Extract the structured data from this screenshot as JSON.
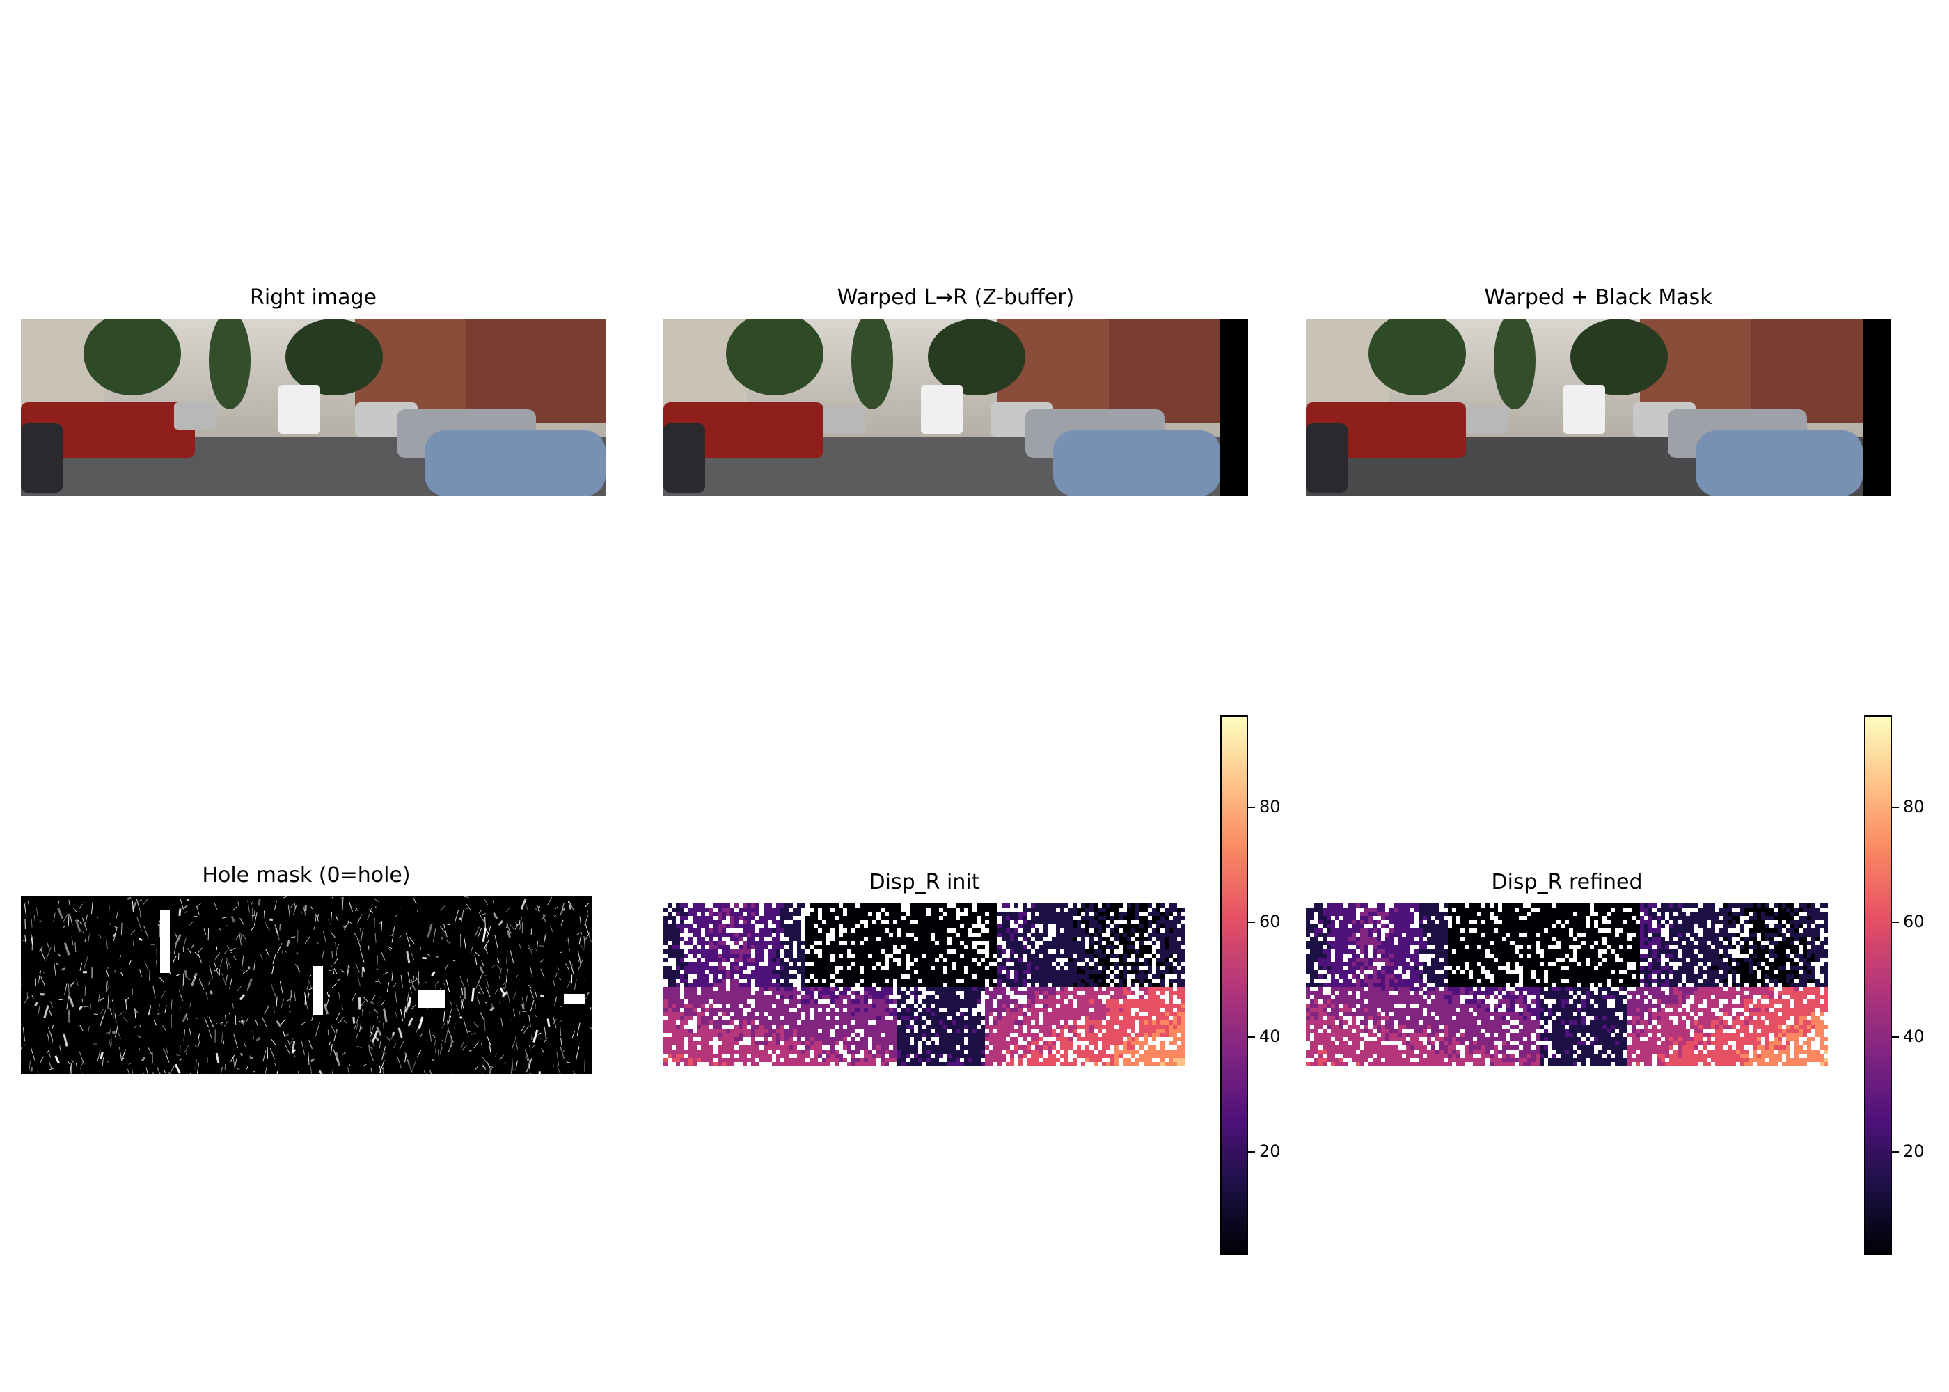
{
  "figure": {
    "panels": [
      {
        "id": "right",
        "title": "Right image"
      },
      {
        "id": "warped",
        "title": "Warped L→R (Z-buffer)"
      },
      {
        "id": "warped_mask",
        "title": "Warped + Black Mask"
      },
      {
        "id": "hole",
        "title": "Hole mask (0=hole)"
      },
      {
        "id": "disp_init",
        "title": "Disp_R init"
      },
      {
        "id": "disp_refined",
        "title": "Disp_R refined"
      }
    ],
    "colorbars": [
      {
        "ticks": [
          "20",
          "40",
          "60",
          "80"
        ]
      },
      {
        "ticks": [
          "20",
          "40",
          "60",
          "80"
        ]
      }
    ],
    "colormap": [
      "#000004",
      "#1c1044",
      "#4f127b",
      "#812581",
      "#b5367a",
      "#e55064",
      "#fb8761",
      "#fec287",
      "#fcfdbf"
    ]
  },
  "chart_data": {
    "type": "heatmap",
    "colorbar_range": [
      2,
      96
    ],
    "colorbar_ticks": [
      20,
      40,
      60,
      80
    ]
  }
}
